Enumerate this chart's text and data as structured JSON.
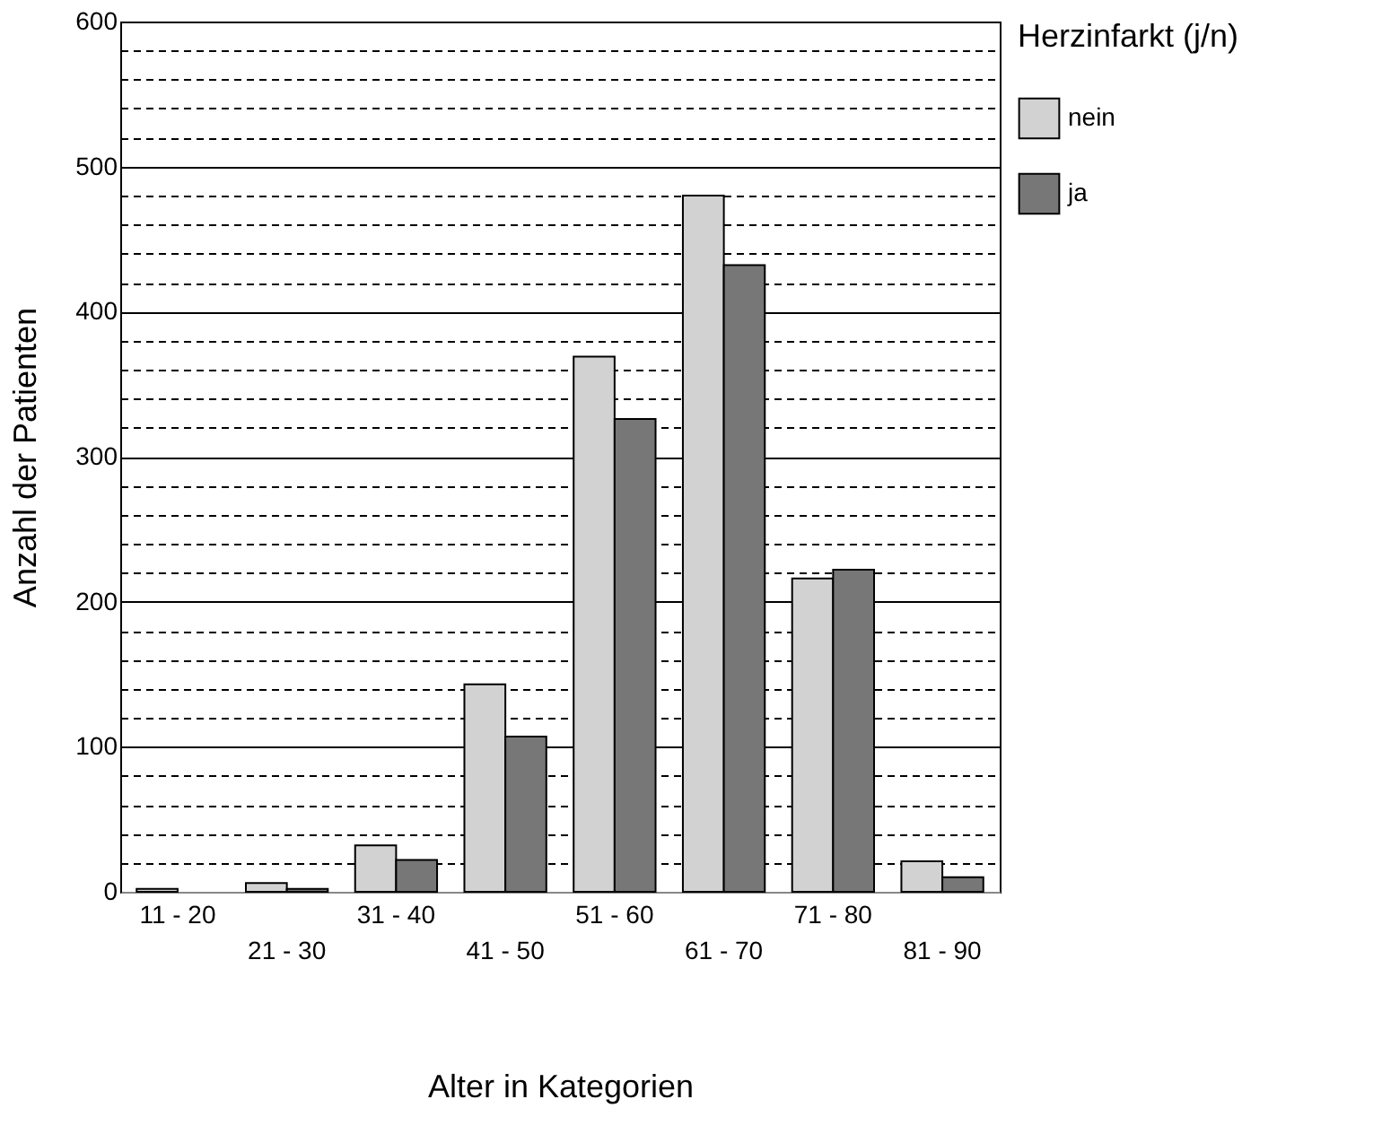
{
  "chart_data": {
    "type": "bar",
    "xlabel": "Alter in Kategorien",
    "ylabel": "Anzahl der Patienten",
    "legend_title": "Herzinfarkt (j/n)",
    "categories": [
      "11 - 20",
      "21 - 30",
      "31 - 40",
      "41 - 50",
      "51 - 60",
      "61 - 70",
      "71 - 80",
      "81 - 90"
    ],
    "series": [
      {
        "name": "nein",
        "color": "#d2d2d2",
        "values": [
          2,
          6,
          32,
          143,
          369,
          480,
          216,
          21
        ]
      },
      {
        "name": "ja",
        "color": "#777777",
        "values": [
          null,
          2,
          22,
          107,
          326,
          432,
          222,
          10
        ]
      }
    ],
    "ylim": [
      0,
      600
    ],
    "yticks": [
      0,
      {
        "value": 20,
        "label": null
      },
      {
        "value": 40,
        "label": null
      },
      {
        "value": 60,
        "label": null
      },
      {
        "value": 80,
        "label": null
      },
      100,
      {
        "value": 120,
        "label": null
      },
      {
        "value": 140,
        "label": null
      },
      {
        "value": 160,
        "label": null
      },
      {
        "value": 180,
        "label": null
      },
      200,
      {
        "value": 220,
        "label": null
      },
      {
        "value": 240,
        "label": null
      },
      {
        "value": 260,
        "label": null
      },
      {
        "value": 280,
        "label": null
      },
      300,
      {
        "value": 320,
        "label": null
      },
      {
        "value": 340,
        "label": null
      },
      {
        "value": 360,
        "label": null
      },
      {
        "value": 380,
        "label": null
      },
      400,
      {
        "value": 420,
        "label": null
      },
      {
        "value": 440,
        "label": null
      },
      {
        "value": 460,
        "label": null
      },
      {
        "value": 480,
        "label": null
      },
      500,
      {
        "value": 520,
        "label": null
      },
      {
        "value": 540,
        "label": null
      },
      {
        "value": 560,
        "label": null
      },
      {
        "value": 580,
        "label": null
      },
      600
    ],
    "grid": "y",
    "legend": "right"
  }
}
